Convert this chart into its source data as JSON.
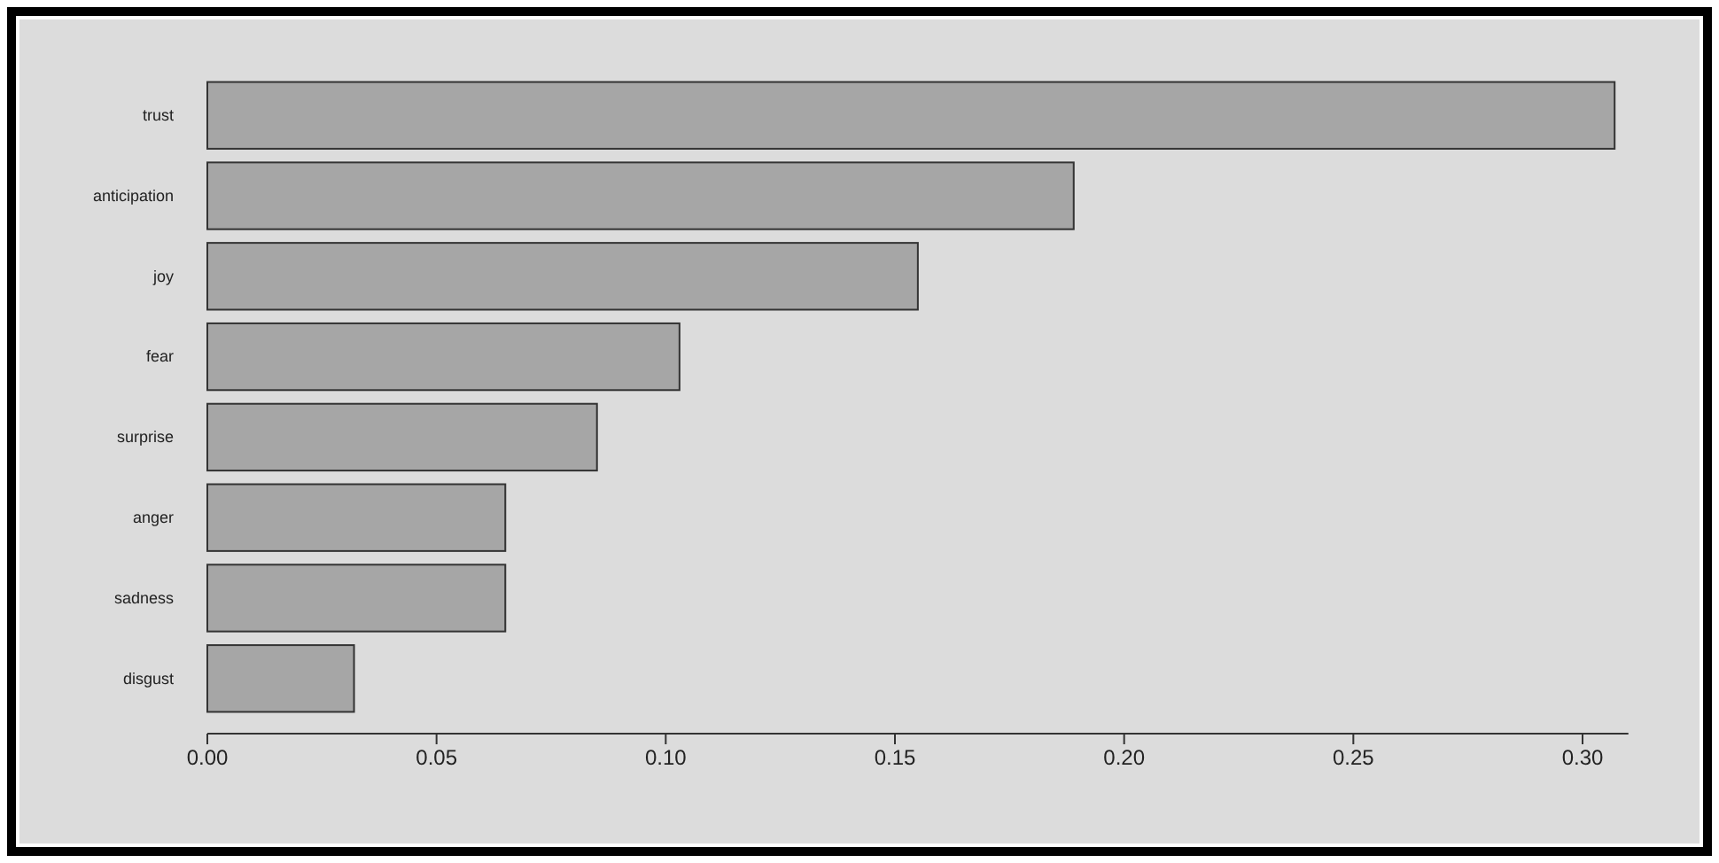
{
  "chart_data": {
    "type": "bar",
    "orientation": "horizontal",
    "categories": [
      "trust",
      "anticipation",
      "joy",
      "fear",
      "surprise",
      "anger",
      "sadness",
      "disgust"
    ],
    "values": [
      0.307,
      0.189,
      0.155,
      0.103,
      0.085,
      0.065,
      0.065,
      0.032
    ],
    "color": "#a6a6a6",
    "xlim": [
      0,
      0.31
    ],
    "xticks": [
      {
        "value": 0,
        "label": "0.00"
      },
      0.05,
      {
        "value": 0.1,
        "label": "0.10"
      },
      0.15,
      {
        "value": 0.2,
        "label": "0.20"
      },
      0.25,
      {
        "value": 0.3,
        "label": "0.30"
      }
    ],
    "grid": false
  }
}
